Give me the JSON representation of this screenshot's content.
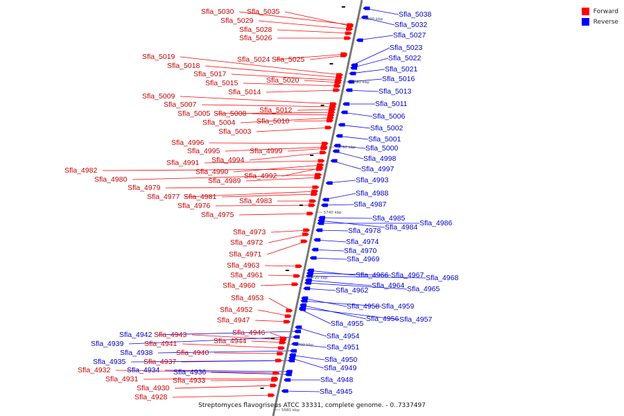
{
  "caption": "Streptomyces flavogriseus ATCC 33331, complete genome. - 0..7337497",
  "legend": {
    "forward": {
      "label": "Forward",
      "color": "#ff0000"
    },
    "reverse": {
      "label": "Reverse",
      "color": "#0000ff"
    }
  },
  "ticks": [
    "5800 kbp",
    "5780 kbp",
    "5760 kbp",
    "5740 kbp",
    "5720 kbp",
    "5700 kbp",
    "5680 kbp"
  ],
  "forward_labels": [
    "Sfla_5030",
    "Sfla_5035",
    "Sfla_5029",
    "Sfla_5028",
    "Sfla_5026",
    "Sfla_5024",
    "Sfla_5025",
    "Sfla_5019",
    "Sfla_5018",
    "Sfla_5017",
    "Sfla_5020",
    "Sfla_5015",
    "Sfla_5014",
    "Sfla_5009",
    "Sfla_5007",
    "Sfla_5012",
    "Sfla_5005",
    "Sfla_5008",
    "Sfla_5004",
    "Sfla_5010",
    "Sfla_5003",
    "Sfla_4996",
    "Sfla_4995",
    "Sfla_4999",
    "Sfla_4994",
    "Sfla_4991",
    "Sfla_4990",
    "Sfla_4982",
    "Sfla_4992",
    "Sfla_4980",
    "Sfla_4989",
    "Sfla_4979",
    "Sfla_4977",
    "Sfla_4981",
    "Sfla_4983",
    "Sfla_4976",
    "Sfla_4975",
    "Sfla_4973",
    "Sfla_4972",
    "Sfla_4971",
    "Sfla_4963",
    "Sfla_4961",
    "Sfla_4960",
    "Sfla_4953",
    "Sfla_4952",
    "Sfla_4947",
    "Sfla_4946",
    "Sfla_4943",
    "Sfla_4944",
    "Sfla_4941",
    "Sfla_4940",
    "Sfla_4937",
    "Sfla_4932",
    "Sfla_4931",
    "Sfla_4933",
    "Sfla_4930",
    "Sfla_4928"
  ],
  "reverse_labels": [
    "Sfla_5038",
    "Sfla_5032",
    "Sfla_5027",
    "Sfla_5023",
    "Sfla_5022",
    "Sfla_5021",
    "Sfla_5016",
    "Sfla_5013",
    "Sfla_5011",
    "Sfla_5006",
    "Sfla_5002",
    "Sfla_5001",
    "Sfla_5000",
    "Sfla_4998",
    "Sfla_4997",
    "Sfla_4993",
    "Sfla_4988",
    "Sfla_4987",
    "Sfla_4985",
    "Sfla_4984",
    "Sfla_4986",
    "Sfla_4978",
    "Sfla_4974",
    "Sfla_4970",
    "Sfla_4969",
    "Sfla_4966",
    "Sfla_4967",
    "Sfla_4968",
    "Sfla_4964",
    "Sfla_4965",
    "Sfla_4962",
    "Sfla_4958",
    "Sfla_4959",
    "Sfla_4956",
    "Sfla_4957",
    "Sfla_4955",
    "Sfla_4954",
    "Sfla_4942",
    "Sfla_4951",
    "Sfla_4939",
    "Sfla_4938",
    "Sfla_4950",
    "Sfla_4935",
    "Sfla_4949",
    "Sfla_4934",
    "Sfla_4936",
    "Sfla_4948",
    "Sfla_4945"
  ]
}
